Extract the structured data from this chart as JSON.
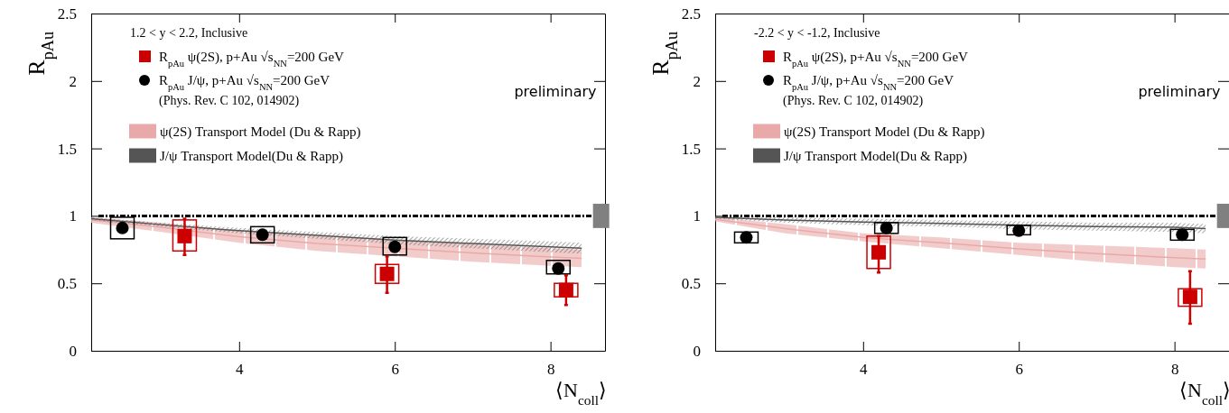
{
  "chart_data": [
    {
      "type": "scatter",
      "ylabel": "R$_{pAu}$",
      "xlabel": "⟨N$_{coll}$⟩",
      "legend_title": "1.2 < y < 2.2, Inclusive",
      "legend": "top left",
      "xlim": [
        2.1,
        8.7
      ],
      "ylim": [
        0,
        2.5
      ],
      "xticks": [
        4,
        6,
        8
      ],
      "yticks": [
        0,
        0.5,
        1,
        1.5,
        2,
        2.5
      ],
      "annotations": [
        "(Phys. Rev. C 102, 014902)",
        "preliminary"
      ],
      "ref_lines": [
        {
          "axis": "y",
          "value": 1,
          "color": "#000000",
          "line_style": "dashed"
        }
      ],
      "series": [
        {
          "name": "ψ(2S) Transport Model (Du & Rapp)",
          "type": "line",
          "marker": "none",
          "color": "#eaa9a9",
          "x": [
            2.1,
            3,
            4,
            5,
            6,
            7,
            8,
            8.4
          ],
          "values": [
            0.97,
            0.915,
            0.845,
            0.795,
            0.76,
            0.725,
            0.695,
            0.685
          ],
          "lower": [
            0.95,
            0.88,
            0.8,
            0.74,
            0.7,
            0.66,
            0.63,
            0.62
          ],
          "upper": [
            0.99,
            0.95,
            0.89,
            0.85,
            0.82,
            0.79,
            0.76,
            0.75
          ]
        },
        {
          "name": "J/ψ Transport Model(Du & Rapp)",
          "type": "line",
          "marker": "none",
          "color": "#555555",
          "x": [
            2.1,
            3,
            4,
            5,
            6,
            7,
            8,
            8.4
          ],
          "values": [
            0.98,
            0.935,
            0.89,
            0.855,
            0.82,
            0.795,
            0.77,
            0.76
          ],
          "lower": [
            0.97,
            0.92,
            0.87,
            0.83,
            0.79,
            0.76,
            0.73,
            0.72
          ],
          "upper": [
            0.99,
            0.95,
            0.91,
            0.88,
            0.85,
            0.83,
            0.81,
            0.8
          ]
        },
        {
          "type": "bar",
          "color": "#cc0000",
          "x": [
            3.3,
            5.9,
            8.2
          ],
          "base": [
            0.74,
            0.5,
            0.4
          ],
          "values": [
            0.23,
            0.14,
            0.1
          ]
        },
        {
          "type": "bar",
          "color": "#000000",
          "x": [
            2.5,
            4.3,
            6.0,
            8.1
          ],
          "base": [
            0.83,
            0.8,
            0.71,
            0.57
          ],
          "values": [
            0.16,
            0.12,
            0.13,
            0.1
          ]
        },
        {
          "name": "R$_{pAu}$ ψ(2S), p+Au √s$_{NN}$=200 GeV",
          "marker": "square",
          "color": "#cc0000",
          "x": [
            3.3,
            5.9,
            8.2
          ],
          "values": [
            0.85,
            0.57,
            0.45
          ],
          "errors": [
            [
              0.71,
              0.98
            ],
            [
              0.43,
              0.7
            ],
            [
              0.34,
              0.56
            ]
          ]
        },
        {
          "name": "R$_{pAu}$ J/ψ, p+Au √s$_{NN}$=200 GeV",
          "marker": "circle",
          "color": "#000000",
          "x": [
            2.5,
            4.3,
            6.0,
            8.1
          ],
          "values": [
            0.91,
            0.86,
            0.77,
            0.61
          ]
        },
        {
          "type": "bar",
          "color": "#808080",
          "x": [
            8.65
          ],
          "base": [
            0.91
          ],
          "values": [
            0.18
          ]
        }
      ]
    },
    {
      "type": "scatter",
      "ylabel": "R$_{pAu}$",
      "xlabel": "⟨N$_{coll}$⟩",
      "legend_title": "-2.2 < y < -1.2, Inclusive",
      "legend": "top left",
      "xlim": [
        2.1,
        8.7
      ],
      "ylim": [
        0,
        2.5
      ],
      "xticks": [
        4,
        6,
        8
      ],
      "yticks": [
        0,
        0.5,
        1,
        1.5,
        2,
        2.5
      ],
      "annotations": [
        "(Phys. Rev. C 102, 014902)",
        "preliminary"
      ],
      "ref_lines": [
        {
          "axis": "y",
          "value": 1,
          "color": "#000000",
          "line_style": "dashed"
        }
      ],
      "series": [
        {
          "name": "ψ(2S) Transport Model (Du & Rapp)",
          "type": "line",
          "marker": "none",
          "color": "#eaa9a9",
          "x": [
            2.1,
            3,
            4,
            5,
            6,
            7,
            8,
            8.4
          ],
          "values": [
            0.975,
            0.905,
            0.84,
            0.8,
            0.755,
            0.72,
            0.69,
            0.68
          ],
          "lower": [
            0.96,
            0.87,
            0.81,
            0.76,
            0.71,
            0.66,
            0.62,
            0.61
          ],
          "upper": [
            0.99,
            0.94,
            0.87,
            0.84,
            0.8,
            0.78,
            0.76,
            0.75
          ]
        },
        {
          "name": "J/ψ Transport Model(Du & Rapp)",
          "type": "line",
          "marker": "none",
          "color": "#555555",
          "x": [
            2.1,
            3,
            4,
            5,
            6,
            7,
            8,
            8.4
          ],
          "values": [
            0.99,
            0.97,
            0.955,
            0.945,
            0.93,
            0.92,
            0.915,
            0.905
          ],
          "lower": [
            0.98,
            0.95,
            0.93,
            0.92,
            0.9,
            0.89,
            0.88,
            0.87
          ],
          "upper": [
            1.0,
            0.99,
            0.98,
            0.97,
            0.96,
            0.95,
            0.95,
            0.94
          ]
        },
        {
          "type": "bar",
          "color": "#cc0000",
          "x": [
            4.2,
            8.2
          ],
          "base": [
            0.61,
            0.33
          ],
          "values": [
            0.24,
            0.13
          ]
        },
        {
          "type": "bar",
          "color": "#000000",
          "x": [
            2.5,
            4.3,
            6.0,
            8.1
          ],
          "base": [
            0.8,
            0.87,
            0.86,
            0.82
          ],
          "values": [
            0.08,
            0.08,
            0.07,
            0.08
          ]
        },
        {
          "name": "R$_{pAu}$ ψ(2S), p+Au √s$_{NN}$=200 GeV",
          "marker": "square",
          "color": "#cc0000",
          "x": [
            4.2,
            8.2
          ],
          "values": [
            0.73,
            0.4
          ],
          "errors": [
            [
              0.58,
              0.85
            ],
            [
              0.2,
              0.59
            ]
          ]
        },
        {
          "name": "R$_{pAu}$ J/ψ, p+Au √s$_{NN}$=200 GeV",
          "marker": "circle",
          "color": "#000000",
          "x": [
            2.5,
            4.3,
            6.0,
            8.1
          ],
          "values": [
            0.84,
            0.91,
            0.89,
            0.86
          ]
        },
        {
          "type": "bar",
          "color": "#808080",
          "x": [
            8.65
          ],
          "base": [
            0.91
          ],
          "values": [
            0.18
          ]
        }
      ]
    }
  ]
}
